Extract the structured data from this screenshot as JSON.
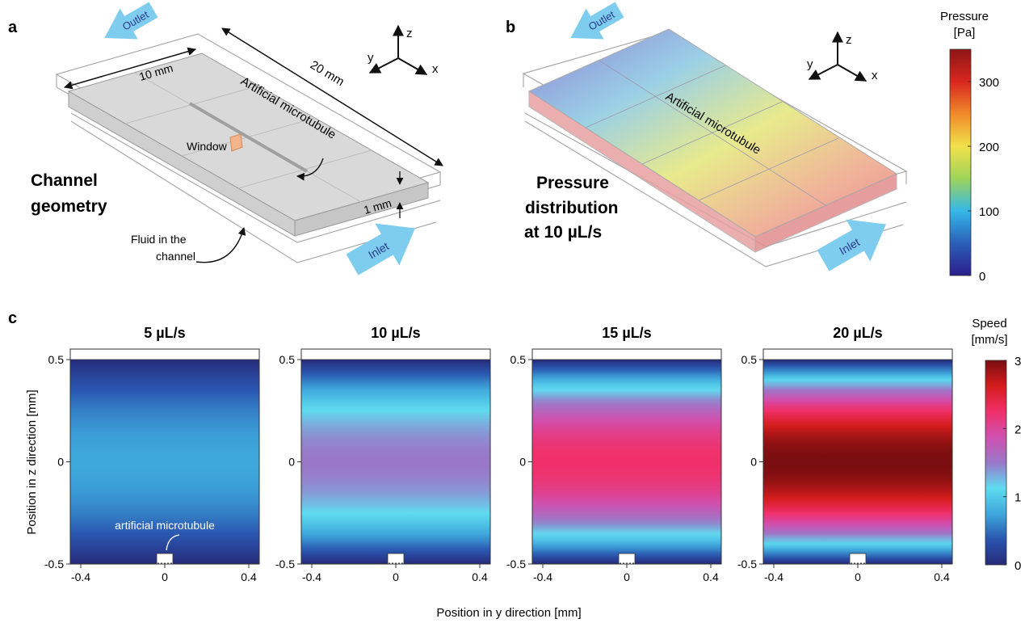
{
  "panel_a": {
    "label": "a",
    "title_line1": "Channel",
    "title_line2": "geometry",
    "outlet": "Outlet",
    "inlet": "Inlet",
    "dim_width": "10 mm",
    "dim_length": "20 mm",
    "dim_height": "1 mm",
    "window": "Window",
    "microtubule": "Artificial microtubule",
    "fluid_line1": "Fluid in the",
    "fluid_line2": "channel",
    "axis_x": "x",
    "axis_y": "y",
    "axis_z": "z"
  },
  "panel_b": {
    "label": "b",
    "title_line1": "Pressure",
    "title_line2": "distribution",
    "title_line3": "at 10 µL/s",
    "outlet": "Outlet",
    "inlet": "Inlet",
    "microtubule": "Artificial microtubule",
    "axis_x": "x",
    "axis_y": "y",
    "axis_z": "z",
    "colorbar": {
      "title_line1": "Pressure",
      "title_line2": "[Pa]",
      "ticks": [
        "0",
        "100",
        "200",
        "300"
      ],
      "tick_values": [
        0,
        100,
        200,
        300
      ],
      "max": 350,
      "colors": [
        "#2b1f8a",
        "#2b5fb8",
        "#35b8e8",
        "#9ed45a",
        "#f2e14a",
        "#f08a2a",
        "#d8261e",
        "#8e1616"
      ]
    }
  },
  "panel_c": {
    "label": "c",
    "ylabel": "Position in z direction [mm]",
    "xlabel": "Position in y direction [mm]",
    "microtubule_label": "artificial microtubule",
    "x_ticks": [
      "-0.4",
      "0",
      "0.4"
    ],
    "y_ticks": [
      "0.5",
      "0",
      "-0.5"
    ],
    "plots": [
      {
        "title": "5 µL/s",
        "flow_rate": 5,
        "max_speed": 0.75
      },
      {
        "title": "10 µL/s",
        "flow_rate": 10,
        "max_speed": 1.5
      },
      {
        "title": "15 µL/s",
        "flow_rate": 15,
        "max_speed": 2.25
      },
      {
        "title": "20 µL/s",
        "flow_rate": 20,
        "max_speed": 3.0
      }
    ],
    "colorbar": {
      "title_line1": "Speed",
      "title_line2": "[mm/s]",
      "ticks": [
        "0",
        "1",
        "2",
        "3"
      ],
      "tick_values": [
        0,
        1,
        2,
        3
      ],
      "max": 3,
      "colors": [
        "#262a78",
        "#2a55b0",
        "#3ea8dc",
        "#5fdcf0",
        "#9a78c8",
        "#d050b0",
        "#f0306a",
        "#d41c1c",
        "#7a0e10"
      ]
    }
  },
  "chart_data": {
    "type": "heatmap",
    "xlabel": "Position in y direction [mm]",
    "ylabel": "Position in z direction [mm]",
    "xlim": [
      -0.45,
      0.45
    ],
    "ylim": [
      -0.5,
      0.5
    ],
    "colorbar_label": "Speed [mm/s]",
    "colorbar_range": [
      0,
      3
    ],
    "series": [
      {
        "name": "5 µL/s",
        "max_speed": 0.75
      },
      {
        "name": "10 µL/s",
        "max_speed": 1.5
      },
      {
        "name": "15 µL/s",
        "max_speed": 2.25
      },
      {
        "name": "20 µL/s",
        "max_speed": 3.0
      }
    ]
  }
}
